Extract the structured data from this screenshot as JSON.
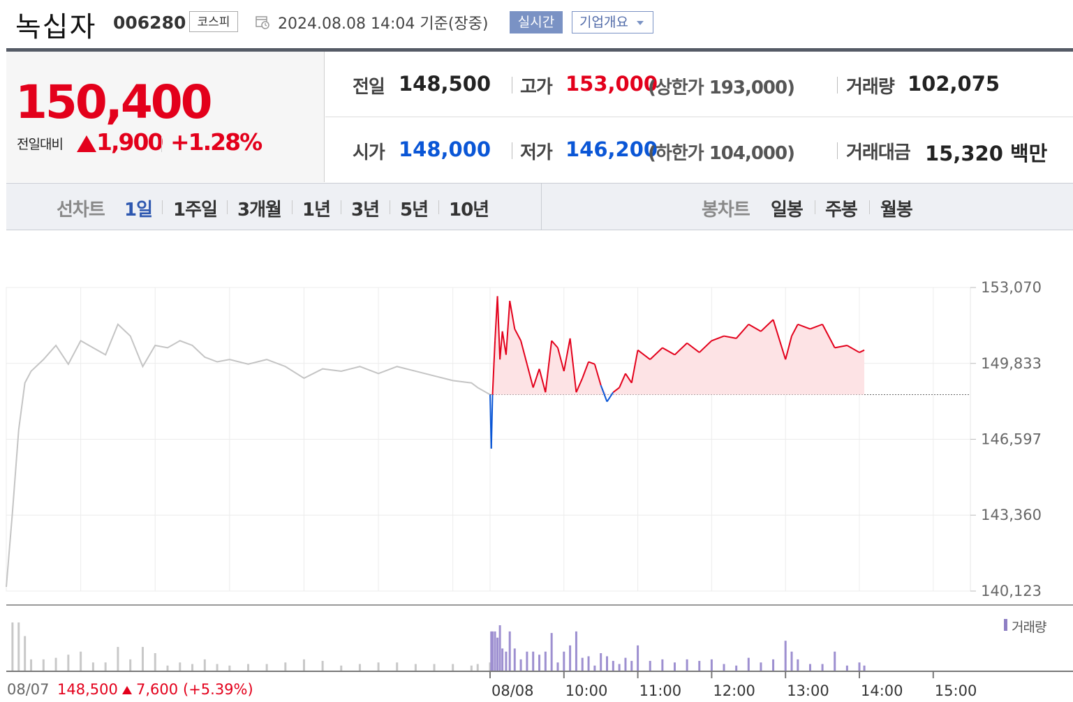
{
  "header": {
    "name": "녹십자",
    "code": "006280",
    "market": "코스피",
    "datetime": "2024.08.08 14:04 기준(장중)",
    "realtime_button": "실시간",
    "company_button": "기업개요",
    "company_button_icon": "dropdown-caret-icon",
    "calendar_icon": "calendar-icon"
  },
  "price": {
    "current": "150,400",
    "change_label": "전일대비",
    "change_value": "1,900",
    "change_pct": "+1.28%",
    "direction": "up"
  },
  "stats": {
    "prev_label": "전일",
    "prev_value": "148,500",
    "high_label": "고가",
    "high_value": "153,000",
    "upper_limit": "(상한가 193,000)",
    "volume_label": "거래량",
    "volume_value": "102,075",
    "open_label": "시가",
    "open_value": "148,000",
    "low_label": "저가",
    "low_value": "146,200",
    "lower_limit": "(하한가 104,000)",
    "amount_label": "거래대금",
    "amount_value": "15,320 백만"
  },
  "tabs": {
    "line_label": "선차트",
    "line_items": [
      "1일",
      "1주일",
      "3개월",
      "1년",
      "3년",
      "5년",
      "10년"
    ],
    "line_active": "1일",
    "candle_label": "봉차트",
    "candle_items": [
      "일봉",
      "주봉",
      "월봉"
    ]
  },
  "colors": {
    "up": "#e3001b",
    "down": "#0a56d6",
    "prev_day_line": "#c4c4c4",
    "area_fill": "#fde3e5",
    "volume_prev": "#c8c8c8",
    "volume_today": "#9d8fd0"
  },
  "prev_day": {
    "date": "08/07",
    "close": "148,500",
    "change": "7,600",
    "change_pct": "(+5.39%)"
  },
  "chart_data": {
    "type": "line",
    "ylim": [
      140123,
      153070
    ],
    "y_ticks": [
      "153,070",
      "149,833",
      "146,597",
      "143,360",
      "140,123"
    ],
    "x_ticks": [
      "08/07",
      "08/08",
      "10:00",
      "11:00",
      "12:00",
      "13:00",
      "14:00",
      "15:00"
    ],
    "baseline": 148500,
    "volume_label": "거래량",
    "series": [
      {
        "name": "08/07",
        "x": [
          "09:00",
          "09:05",
          "09:10",
          "09:15",
          "09:20",
          "09:30",
          "09:40",
          "09:50",
          "10:00",
          "10:10",
          "10:20",
          "10:30",
          "10:40",
          "10:50",
          "11:00",
          "11:10",
          "11:20",
          "11:30",
          "11:40",
          "11:50",
          "12:00",
          "12:15",
          "12:30",
          "12:45",
          "13:00",
          "13:15",
          "13:30",
          "13:45",
          "14:00",
          "14:15",
          "14:30",
          "14:45",
          "15:00",
          "15:15",
          "15:20",
          "15:30"
        ],
        "values": [
          140300,
          143500,
          147000,
          149000,
          149500,
          150000,
          150600,
          149800,
          150800,
          150500,
          150200,
          151500,
          151000,
          149700,
          150600,
          150500,
          150800,
          150600,
          150100,
          149900,
          150000,
          149800,
          150000,
          149700,
          149200,
          149600,
          149500,
          149700,
          149400,
          149700,
          149500,
          149300,
          149100,
          149000,
          148800,
          148500
        ]
      },
      {
        "name": "08/08",
        "x": [
          "09:00",
          "09:01",
          "09:02",
          "09:04",
          "09:06",
          "09:08",
          "09:10",
          "09:13",
          "09:16",
          "09:20",
          "09:25",
          "09:30",
          "09:35",
          "09:40",
          "09:45",
          "09:50",
          "09:55",
          "10:00",
          "10:05",
          "10:10",
          "10:15",
          "10:20",
          "10:25",
          "10:30",
          "10:35",
          "10:40",
          "10:45",
          "10:50",
          "10:55",
          "11:00",
          "11:10",
          "11:20",
          "11:30",
          "11:40",
          "11:50",
          "12:00",
          "12:10",
          "12:20",
          "12:30",
          "12:40",
          "12:50",
          "13:00",
          "13:05",
          "13:10",
          "13:20",
          "13:30",
          "13:40",
          "13:50",
          "14:00",
          "14:04"
        ],
        "values": [
          148500,
          146200,
          148500,
          150800,
          152700,
          150000,
          151200,
          150200,
          152500,
          151300,
          150800,
          149800,
          148800,
          149600,
          148600,
          150800,
          150500,
          149500,
          150900,
          148600,
          149200,
          149900,
          149800,
          148900,
          148200,
          148600,
          148800,
          149400,
          149000,
          150400,
          150000,
          150500,
          150200,
          150700,
          150300,
          150800,
          151000,
          150900,
          151500,
          151200,
          151700,
          150000,
          151000,
          151500,
          151300,
          151500,
          150500,
          150600,
          150300,
          150400
        ]
      }
    ]
  }
}
